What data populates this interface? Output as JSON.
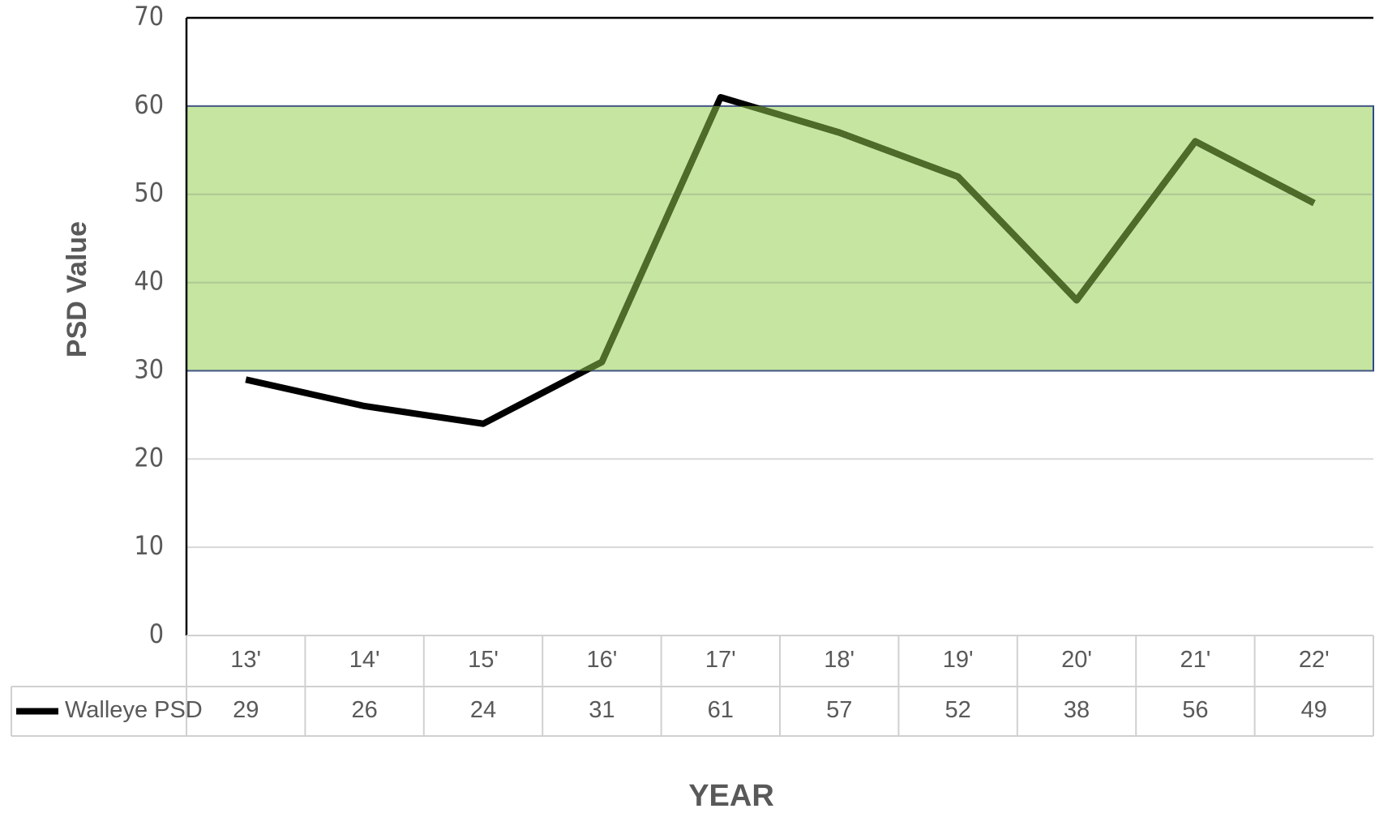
{
  "chart_data": {
    "type": "line",
    "y_label": "PSD Value",
    "x_label": "YEAR",
    "categories": [
      "13'",
      "14'",
      "15'",
      "16'",
      "17'",
      "18'",
      "19'",
      "20'",
      "21'",
      "22'"
    ],
    "series": [
      {
        "name": "Walleye PSD",
        "color": "#000000",
        "values": [
          29,
          26,
          24,
          31,
          61,
          57,
          52,
          38,
          56,
          49
        ]
      }
    ],
    "target_range": {
      "low": 30,
      "high": 60,
      "color": "#c5e5a0",
      "border_color": "#2f4a8a",
      "line_color": "#4e6b2a"
    },
    "ylim": [
      0,
      70
    ],
    "yticks": [
      0,
      10,
      20,
      30,
      40,
      50,
      60,
      70
    ],
    "grid": true,
    "data_table": true
  }
}
